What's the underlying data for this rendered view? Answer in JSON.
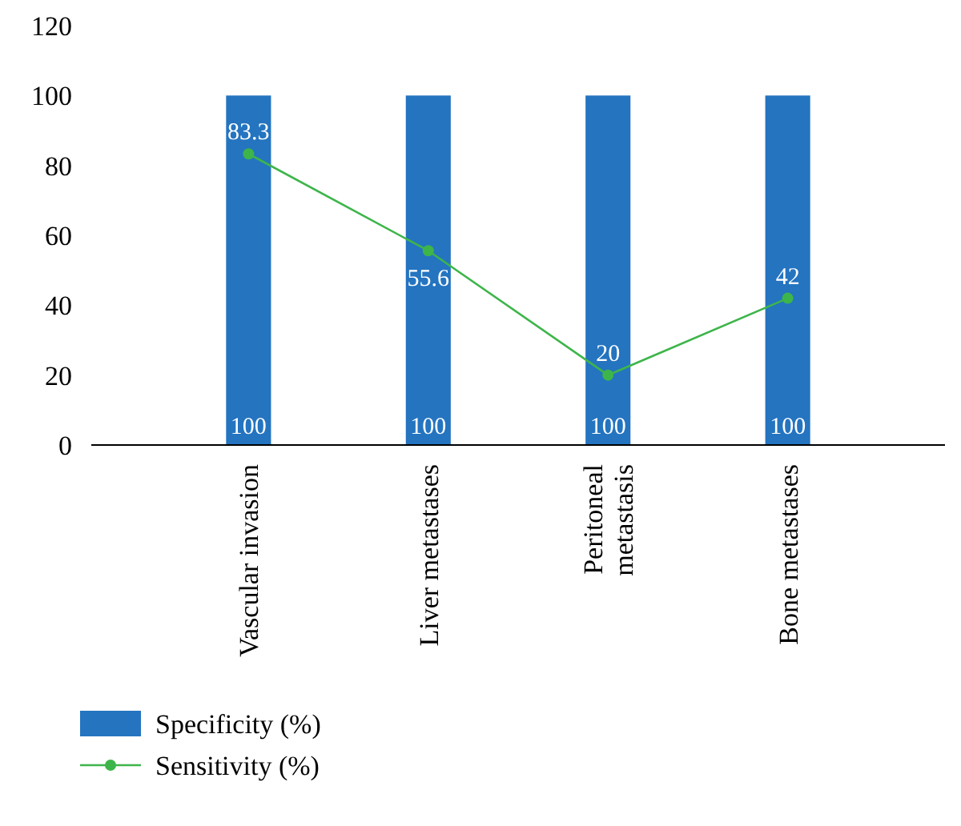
{
  "chart_data": {
    "type": "bar",
    "categories": [
      "Vascular invasion",
      "Liver metastases",
      "Peritoneal\nmetastasis",
      "Bone metastases"
    ],
    "series": [
      {
        "name": "Specificity (%)",
        "color": "#2474c0",
        "values": [
          100,
          100,
          100,
          100
        ]
      },
      {
        "name": "Sensitivity (%)",
        "type": "line",
        "color": "#3db54a",
        "values": [
          83.3,
          55.6,
          20,
          42
        ]
      }
    ],
    "ylim": [
      0,
      120
    ],
    "yticks": [
      0,
      20,
      40,
      60,
      80,
      100,
      120
    ],
    "data_labels": true,
    "legend": "bottom left",
    "marker": "circle",
    "grid": false
  }
}
